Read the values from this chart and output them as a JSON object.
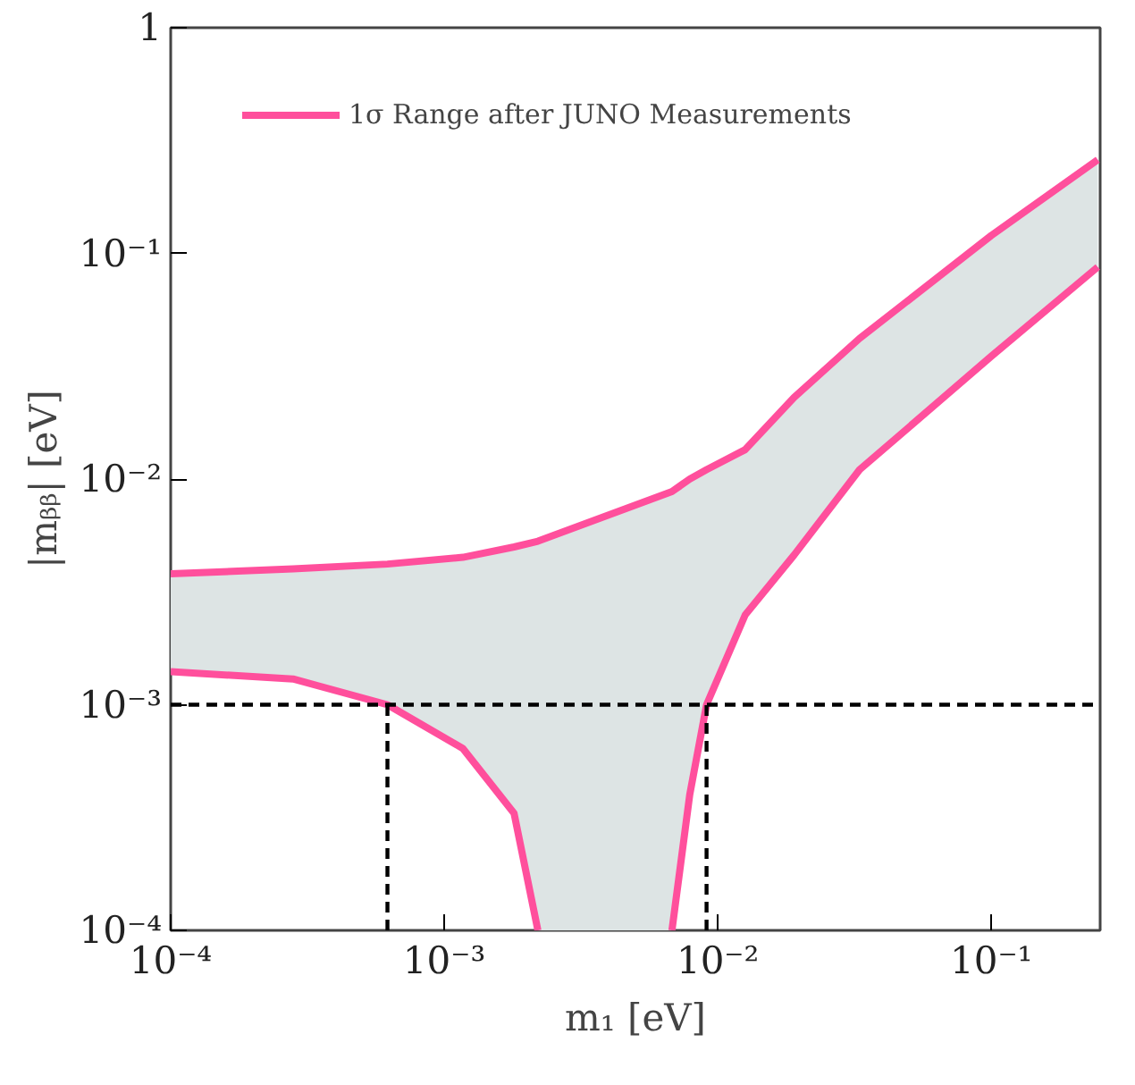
{
  "chart_data": {
    "type": "line",
    "xlabel": "m₁ [eV]",
    "ylabel": "|mᵦᵦ| [eV]",
    "log": "xy",
    "xlim": [
      0.0001,
      0.25
    ],
    "ylim": [
      0.0001,
      1
    ],
    "xticks": [
      {
        "value": 0.0001,
        "label": "10⁻⁴"
      },
      {
        "value": 0.001,
        "label": "10⁻³"
      },
      {
        "value": 0.01,
        "label": "10⁻²"
      },
      {
        "value": 0.1,
        "label": "10⁻¹"
      }
    ],
    "yticks": [
      {
        "value": 0.0001,
        "label": "10⁻⁴"
      },
      {
        "value": 0.001,
        "label": "10⁻³"
      },
      {
        "value": 0.01,
        "label": "10⁻²"
      },
      {
        "value": 0.1,
        "label": "10⁻¹"
      },
      {
        "value": 1,
        "label": "1"
      }
    ],
    "grid": false,
    "legend": "top left",
    "line_style": "solid",
    "marker": "none",
    "series": [
      {
        "name": "1σ Range after JUNO Measurements",
        "color": "#ff4f9c",
        "x": [
          0.0001,
          0.00028,
          0.00062,
          0.00117,
          0.0018,
          0.0022,
          0.0068,
          0.0079,
          0.0091,
          0.0126,
          0.019,
          0.033,
          0.1,
          0.245
        ],
        "values": [
          0.0038,
          0.004,
          0.0042,
          0.0045,
          0.005,
          0.0053,
          0.0088,
          0.01,
          0.011,
          0.0135,
          0.023,
          0.042,
          0.12,
          0.26
        ],
        "lower": [
          0.0014,
          0.0013,
          0.001,
          0.00064,
          0.00033,
          0.0001,
          0.0001,
          0.0004,
          0.001,
          0.0025,
          0.0046,
          0.011,
          0.035,
          0.087
        ],
        "upper": [
          0.0038,
          0.004,
          0.0042,
          0.0045,
          0.005,
          0.0053,
          0.0088,
          0.01,
          0.011,
          0.0135,
          0.023,
          0.042,
          0.12,
          0.26
        ]
      },
      {
        "color": "#ff4f9c",
        "x": [
          0.0001,
          0.00028,
          0.00062,
          0.00117,
          0.0018,
          0.0022
        ],
        "values": [
          0.0014,
          0.0013,
          0.001,
          0.00064,
          0.00033,
          0.0001
        ]
      },
      {
        "color": "#ff4f9c",
        "x": [
          0.0068,
          0.0079,
          0.0091,
          0.0126,
          0.019,
          0.033,
          0.1,
          0.245
        ],
        "values": [
          0.0001,
          0.0004,
          0.001,
          0.0025,
          0.0046,
          0.011,
          0.035,
          0.087
        ]
      },
      {
        "color": "#000000",
        "line_style": "dashed",
        "x": [
          0.00062,
          0.00062
        ],
        "values": [
          0.0001,
          0.001
        ]
      },
      {
        "color": "#000000",
        "line_style": "dashed",
        "x": [
          0.0091,
          0.0091
        ],
        "values": [
          0.0001,
          0.001
        ]
      }
    ],
    "ref_lines": [
      {
        "axis": "y",
        "value": 0.001,
        "color": "#000000",
        "line_style": "dashed"
      }
    ]
  }
}
